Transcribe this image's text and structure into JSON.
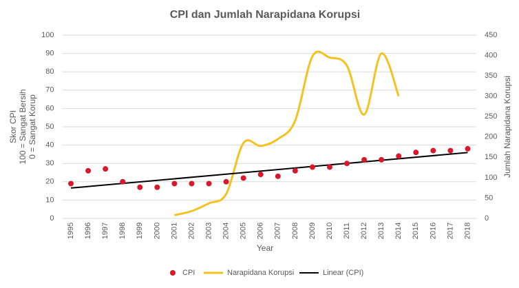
{
  "chart_data": {
    "type": "combo",
    "title": "CPI dan Jumlah Narapidana Korupsi",
    "x_label": "Year",
    "y_label": [
      "Skor CPI",
      "100 = Sangat Bersih",
      "0 = Sangat Korup"
    ],
    "y2_label": "Jumlah Narapidana Korupsi",
    "categories": [
      "1995",
      "1996",
      "1997",
      "1998",
      "1999",
      "2000",
      "2001",
      "2002",
      "2003",
      "2004",
      "2005",
      "2006",
      "2007",
      "2008",
      "2009",
      "2010",
      "2011",
      "2012",
      "2013",
      "2014",
      "2015",
      "2016",
      "2017",
      "2018"
    ],
    "series": [
      {
        "name": "CPI",
        "color": "#d7192a",
        "kind": "scatter",
        "values": [
          19,
          26,
          27,
          20,
          17,
          17,
          19,
          19,
          19,
          20,
          22,
          24,
          23,
          26,
          28,
          28,
          30,
          32,
          32,
          34,
          36,
          37,
          37,
          38
        ]
      },
      {
        "name": "Narapidana Korupsi",
        "color": "#f4c21f",
        "kind": "line",
        "axis": "y2",
        "values": [
          null,
          null,
          null,
          null,
          null,
          null,
          8,
          18,
          37,
          60,
          185,
          178,
          195,
          240,
          398,
          395,
          375,
          255,
          405,
          300,
          null,
          null,
          null,
          null
        ]
      }
    ],
    "trendline": {
      "name": "Linear (CPI)",
      "color": "#000000",
      "of": 0
    },
    "ylim": [
      0,
      100
    ],
    "yticks": [
      0,
      10,
      20,
      30,
      40,
      50,
      60,
      70,
      80,
      90,
      100
    ],
    "y2lim": [
      0,
      450
    ],
    "y2ticks": [
      0,
      50,
      100,
      150,
      200,
      250,
      300,
      350,
      400,
      450
    ],
    "grid": true,
    "legend": "bottom"
  }
}
